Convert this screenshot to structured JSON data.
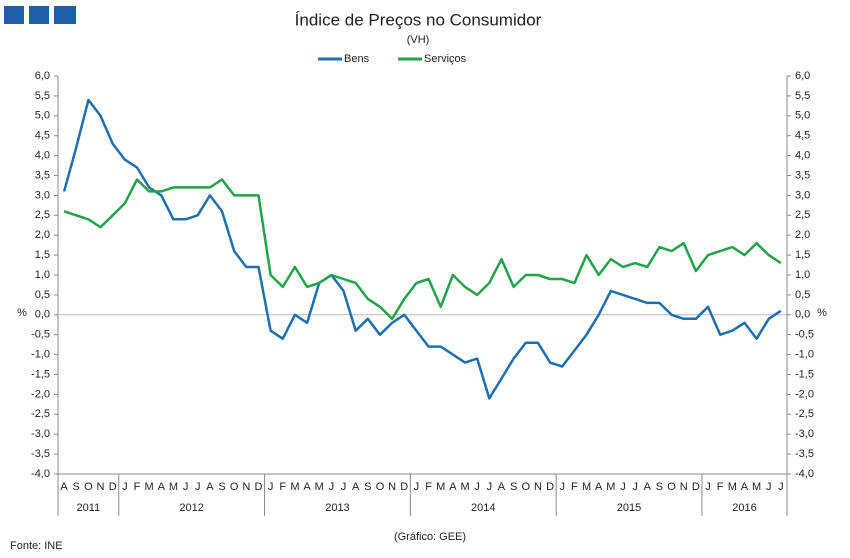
{
  "chart_data": {
    "type": "line",
    "title": "Índice de Preços no Consumidor",
    "subtitle": "(VH)",
    "ylabel": "%",
    "y2label": "%",
    "source": "Fonte: INE",
    "note": "(Gráfico: GEE)",
    "categories": [
      "A",
      "S",
      "O",
      "N",
      "D",
      "J",
      "F",
      "M",
      "A",
      "M",
      "J",
      "J",
      "A",
      "S",
      "O",
      "N",
      "D",
      "J",
      "F",
      "M",
      "A",
      "M",
      "J",
      "J",
      "A",
      "S",
      "O",
      "N",
      "D",
      "J",
      "F",
      "M",
      "A",
      "M",
      "J",
      "J",
      "A",
      "S",
      "O",
      "N",
      "D",
      "J",
      "F",
      "M",
      "A",
      "M",
      "J",
      "J",
      "A",
      "S",
      "O",
      "N",
      "D",
      "J",
      "F",
      "M",
      "A",
      "M",
      "J",
      "J"
    ],
    "year_groups": [
      {
        "label": "2011",
        "count": 5
      },
      {
        "label": "2012",
        "count": 12
      },
      {
        "label": "2013",
        "count": 12
      },
      {
        "label": "2014",
        "count": 12
      },
      {
        "label": "2015",
        "count": 12
      },
      {
        "label": "2016",
        "count": 7
      }
    ],
    "series": [
      {
        "name": "Bens",
        "color": "#1f6fae",
        "values": [
          3.1,
          4.2,
          5.4,
          5.0,
          4.3,
          3.9,
          3.7,
          3.2,
          3.0,
          2.4,
          2.4,
          2.5,
          3.0,
          2.6,
          1.6,
          1.2,
          1.2,
          -0.4,
          -0.6,
          0.0,
          -0.2,
          0.8,
          1.0,
          0.6,
          -0.4,
          -0.1,
          -0.5,
          -0.2,
          0.0,
          -0.4,
          -0.8,
          -0.8,
          -1.0,
          -1.2,
          -1.1,
          -2.1,
          -1.6,
          -1.1,
          -0.7,
          -0.7,
          -1.2,
          -1.3,
          -0.9,
          -0.5,
          0.0,
          0.6,
          0.5,
          0.4,
          0.3,
          0.3,
          0.0,
          -0.1,
          -0.1,
          0.2,
          -0.5,
          -0.4,
          -0.2,
          -0.6,
          -0.1,
          0.1
        ]
      },
      {
        "name": "Serviços",
        "color": "#22a34a",
        "values": [
          2.6,
          2.5,
          2.4,
          2.2,
          2.5,
          2.8,
          3.4,
          3.1,
          3.1,
          3.2,
          3.2,
          3.2,
          3.2,
          3.4,
          3.0,
          3.0,
          3.0,
          1.0,
          0.7,
          1.2,
          0.7,
          0.8,
          1.0,
          0.9,
          0.8,
          0.4,
          0.2,
          -0.1,
          0.4,
          0.8,
          0.9,
          0.2,
          1.0,
          0.7,
          0.5,
          0.8,
          1.4,
          0.7,
          1.0,
          1.0,
          0.9,
          0.9,
          0.8,
          1.5,
          1.0,
          1.4,
          1.2,
          1.3,
          1.2,
          1.7,
          1.6,
          1.8,
          1.1,
          1.5,
          1.6,
          1.7,
          1.5,
          1.8,
          1.5,
          1.3
        ]
      }
    ],
    "ylim": [
      -4,
      6
    ],
    "yticks": [
      {
        "value": 6,
        "label": "6,0"
      },
      {
        "value": 5.5,
        "label": "5,5"
      },
      {
        "value": 5,
        "label": "5,0"
      },
      {
        "value": 4.5,
        "label": "4,5"
      },
      {
        "value": 4,
        "label": "4,0"
      },
      {
        "value": 3.5,
        "label": "3,5"
      },
      {
        "value": 3,
        "label": "3,0"
      },
      {
        "value": 2.5,
        "label": "2,5"
      },
      {
        "value": 2,
        "label": "2,0"
      },
      {
        "value": 1.5,
        "label": "1,5"
      },
      {
        "value": 1,
        "label": "1,0"
      },
      {
        "value": 0.5,
        "label": "0,5"
      },
      {
        "value": 0,
        "label": "0,0"
      },
      {
        "value": -0.5,
        "label": "-0,5"
      },
      {
        "value": -1,
        "label": "-1,0"
      },
      {
        "value": -1.5,
        "label": "-1,5"
      },
      {
        "value": -2,
        "label": "-2,0"
      },
      {
        "value": -2.5,
        "label": "-2,5"
      },
      {
        "value": -3,
        "label": "-3,0"
      },
      {
        "value": -3.5,
        "label": "-3,5"
      },
      {
        "value": -4,
        "label": "-4,0"
      }
    ],
    "y2lim": [
      -4,
      6
    ],
    "y2ticks": [
      {
        "value": 6,
        "label": "6,0"
      },
      {
        "value": 5.5,
        "label": "5,5"
      },
      {
        "value": 5,
        "label": "5,0"
      },
      {
        "value": 4.5,
        "label": "4,5"
      },
      {
        "value": 4,
        "label": "4,0"
      },
      {
        "value": 3.5,
        "label": "3,5"
      },
      {
        "value": 3,
        "label": "3,0"
      },
      {
        "value": 2.5,
        "label": "2,5"
      },
      {
        "value": 2,
        "label": "2,0"
      },
      {
        "value": 1.5,
        "label": "1,5"
      },
      {
        "value": 1,
        "label": "1,0"
      },
      {
        "value": 0.5,
        "label": "0,5"
      },
      {
        "value": 0,
        "label": "0,0"
      },
      {
        "value": -0.5,
        "label": "-0,5"
      },
      {
        "value": -1,
        "label": "-1,0"
      },
      {
        "value": -1.5,
        "label": "-1,5"
      },
      {
        "value": -2,
        "label": "-2,0"
      },
      {
        "value": -2.5,
        "label": "-2,5"
      },
      {
        "value": -3,
        "label": "-3,0"
      },
      {
        "value": -3.5,
        "label": "-3,5"
      },
      {
        "value": -4,
        "label": "-4,0"
      }
    ]
  }
}
